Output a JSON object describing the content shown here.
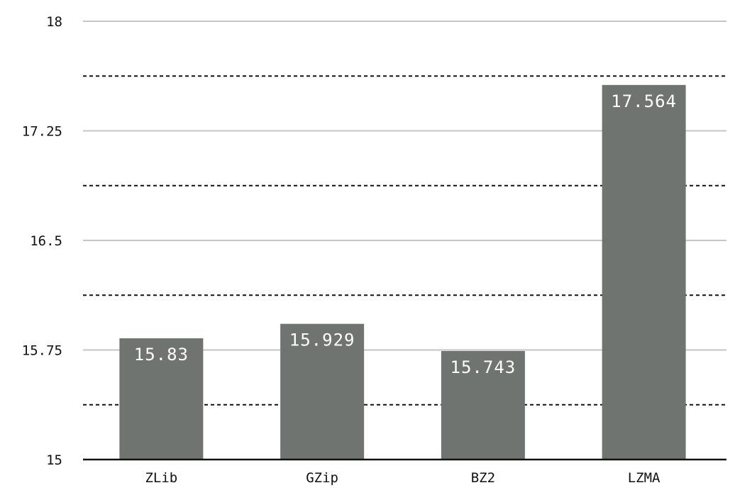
{
  "chart_data": {
    "type": "bar",
    "title": "",
    "xlabel": "",
    "ylabel": "",
    "categories": [
      "ZLib",
      "GZip",
      "BZ2",
      "LZMA"
    ],
    "values": [
      15.83,
      15.929,
      15.743,
      17.564
    ],
    "value_labels": [
      "15.83",
      "15.929",
      "15.743",
      "17.564"
    ],
    "ylim": [
      15,
      18
    ],
    "major_ticks": [
      15,
      15.75,
      16.5,
      17.25,
      18
    ],
    "major_tick_labels": [
      "15",
      "15.75",
      "16.5",
      "17.25",
      "18"
    ],
    "minor_ticks": [
      15.375,
      16.125,
      16.875,
      17.625
    ],
    "grid": true,
    "legend": "none",
    "colors": {
      "bar": "#6f7471",
      "major_grid": "#c6c6c6",
      "minor_grid": "#111111",
      "axis": "#111111",
      "value_text": "#ffffff"
    }
  }
}
